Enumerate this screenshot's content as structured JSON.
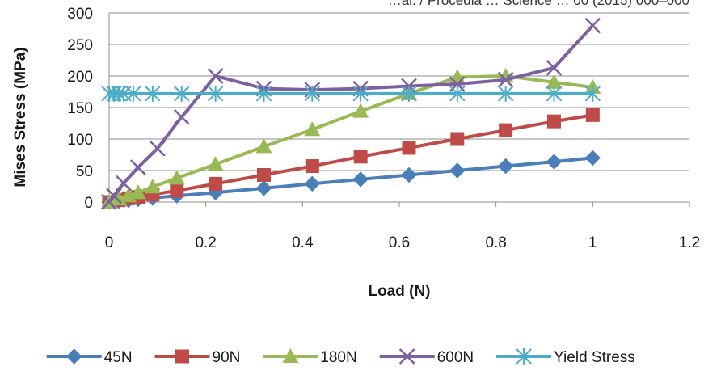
{
  "chart_data": {
    "type": "line",
    "top_caption": "…al. / Procedia … Science … 00 (2015) 000–000",
    "xlabel": "Load (N)",
    "ylabel": "Mises Stress (MPa)",
    "xlim": [
      0,
      1.2
    ],
    "ylim": [
      0,
      300
    ],
    "x_ticks": [
      "0",
      "0.2",
      "0.4",
      "0.6",
      "0.8",
      "1",
      "1.2"
    ],
    "y_ticks": [
      "0",
      "50",
      "100",
      "150",
      "200",
      "250",
      "300"
    ],
    "grid": "horizontal major gridlines",
    "legend_position": "bottom",
    "series": [
      {
        "name": "45N",
        "color": "#4a7ebb",
        "marker": "diamond",
        "points": [
          [
            0,
            0
          ],
          [
            0.02,
            1.5
          ],
          [
            0.04,
            3
          ],
          [
            0.06,
            4.5
          ],
          [
            0.09,
            6.5
          ],
          [
            0.14,
            10
          ],
          [
            0.22,
            15
          ],
          [
            0.32,
            22
          ],
          [
            0.42,
            29
          ],
          [
            0.52,
            36
          ],
          [
            0.62,
            43
          ],
          [
            0.72,
            50
          ],
          [
            0.82,
            57
          ],
          [
            0.92,
            64
          ],
          [
            1.0,
            70
          ]
        ]
      },
      {
        "name": "90N",
        "color": "#be4b48",
        "marker": "square",
        "points": [
          [
            0,
            0
          ],
          [
            0.02,
            3
          ],
          [
            0.04,
            6
          ],
          [
            0.06,
            8
          ],
          [
            0.09,
            12
          ],
          [
            0.14,
            18
          ],
          [
            0.22,
            29
          ],
          [
            0.32,
            43
          ],
          [
            0.42,
            57
          ],
          [
            0.52,
            72
          ],
          [
            0.62,
            86
          ],
          [
            0.72,
            100
          ],
          [
            0.82,
            114
          ],
          [
            0.92,
            128
          ],
          [
            1.0,
            138
          ]
        ]
      },
      {
        "name": "180N",
        "color": "#98b954",
        "marker": "triangle",
        "points": [
          [
            0,
            0
          ],
          [
            0.02,
            5
          ],
          [
            0.04,
            10
          ],
          [
            0.06,
            15
          ],
          [
            0.09,
            24
          ],
          [
            0.14,
            38
          ],
          [
            0.22,
            60
          ],
          [
            0.32,
            88
          ],
          [
            0.42,
            115
          ],
          [
            0.52,
            144
          ],
          [
            0.62,
            172
          ],
          [
            0.72,
            198
          ],
          [
            0.82,
            200
          ],
          [
            0.92,
            190
          ],
          [
            1.0,
            182
          ]
        ]
      },
      {
        "name": "600N",
        "color": "#7d60a0",
        "marker": "x",
        "points": [
          [
            0,
            0
          ],
          [
            0.01,
            10
          ],
          [
            0.03,
            30
          ],
          [
            0.06,
            55
          ],
          [
            0.1,
            85
          ],
          [
            0.15,
            135
          ],
          [
            0.22,
            200
          ],
          [
            0.32,
            180
          ],
          [
            0.42,
            178
          ],
          [
            0.52,
            180
          ],
          [
            0.62,
            184
          ],
          [
            0.72,
            187
          ],
          [
            0.82,
            194
          ],
          [
            0.92,
            213
          ],
          [
            1.0,
            280
          ]
        ]
      },
      {
        "name": "Yield Stress",
        "color": "#4bacc6",
        "marker": "asterisk",
        "points": [
          [
            0,
            172
          ],
          [
            0.01,
            172
          ],
          [
            0.02,
            172
          ],
          [
            0.03,
            172
          ],
          [
            0.05,
            172
          ],
          [
            0.09,
            172
          ],
          [
            0.15,
            172
          ],
          [
            0.22,
            172
          ],
          [
            0.32,
            172
          ],
          [
            0.42,
            172
          ],
          [
            0.52,
            172
          ],
          [
            0.62,
            172
          ],
          [
            0.72,
            172
          ],
          [
            0.82,
            172
          ],
          [
            0.92,
            172
          ],
          [
            1.0,
            172
          ]
        ]
      }
    ]
  }
}
